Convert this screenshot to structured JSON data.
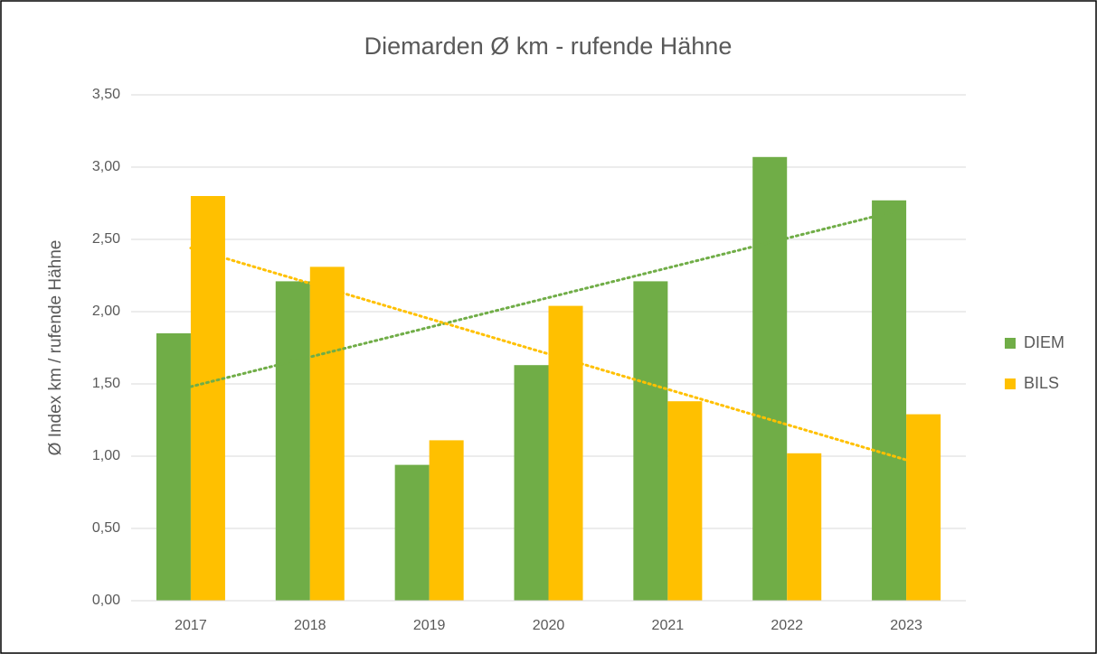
{
  "chart_data": {
    "type": "bar",
    "title": "Diemarden Ø km - rufende Hähne",
    "y_label": "Ø Index km / rufende Hähne",
    "categories": [
      "2017",
      "2018",
      "2019",
      "2020",
      "2021",
      "2022",
      "2023"
    ],
    "series": [
      {
        "name": "DIEM",
        "color": "#70ad47",
        "values": [
          1.85,
          2.21,
          0.94,
          1.63,
          2.21,
          3.07,
          2.77
        ]
      },
      {
        "name": "BILS",
        "color": "#ffc000",
        "values": [
          2.8,
          2.31,
          1.11,
          2.04,
          1.38,
          1.02,
          1.29
        ]
      }
    ],
    "ylim": [
      0,
      3.5
    ],
    "yticks": [
      {
        "value": 0,
        "label": "0,00"
      },
      {
        "value": 0.5,
        "label": "0,50"
      },
      {
        "value": 1,
        "label": "1,00"
      },
      {
        "value": 1.5,
        "label": "1,50"
      },
      {
        "value": 2,
        "label": "2,00"
      },
      {
        "value": 2.5,
        "label": "2,50"
      },
      {
        "value": 3,
        "label": "3,00"
      },
      {
        "value": 3.5,
        "label": "3,50"
      }
    ],
    "grid": true,
    "trendline": "linear",
    "legend": "right"
  }
}
